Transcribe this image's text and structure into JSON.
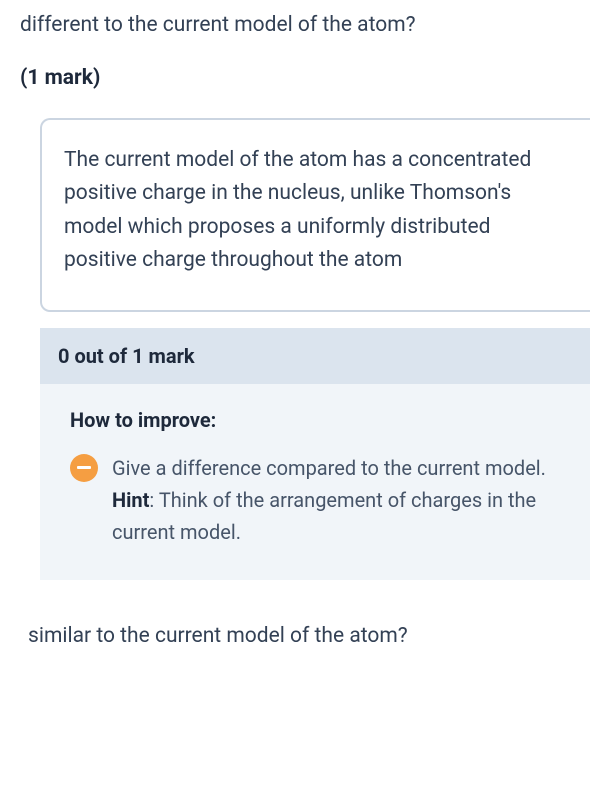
{
  "question": {
    "text": "different to the current model of the atom?",
    "mark_label": "(1 mark)"
  },
  "answer": {
    "text": "The current model of the atom has a concentrated positive charge in the nucleus, unlike Thomson's model which proposes a uniformly distributed positive charge throughout the atom"
  },
  "score": {
    "text": "0 out of 1 mark"
  },
  "feedback": {
    "heading": "How to improve:",
    "item_text": "Give a difference compared to the current model.",
    "hint_label": "Hint",
    "hint_text": ": Think of the arrangement of charges in the current model."
  },
  "next_question": {
    "text": "similar to the current model of the atom?"
  },
  "colors": {
    "text_primary": "#334155",
    "text_heading": "#1e293b",
    "border": "#cbd5e1",
    "score_bg": "#dbe4ee",
    "improve_bg": "#f1f5f9",
    "minus_icon_bg": "#f59e42",
    "minus_icon_fg": "#ffffff"
  }
}
